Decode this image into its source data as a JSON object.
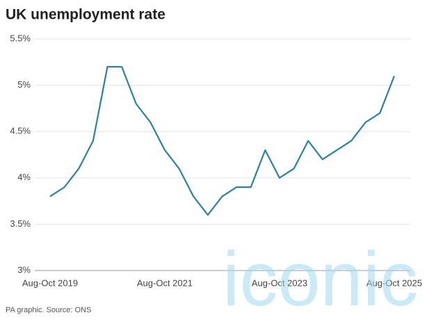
{
  "chart_data": {
    "type": "line",
    "title": "UK unemployment rate",
    "source": "PA graphic. Source: ONS",
    "watermark": "iconic",
    "categories": [
      "Aug-Oct 2019",
      null,
      null,
      null,
      null,
      null,
      null,
      null,
      "Aug-Oct 2021",
      null,
      null,
      null,
      null,
      null,
      null,
      null,
      "Aug-Oct 2023",
      null,
      null,
      null,
      null,
      null,
      null,
      null,
      "Aug-Oct 2025"
    ],
    "series": [
      {
        "name": "Unemployment rate",
        "color": "#2a80a3",
        "values": [
          3.8,
          3.9,
          4.1,
          4.4,
          5.2,
          5.2,
          4.8,
          4.6,
          4.3,
          4.1,
          3.8,
          3.6,
          3.8,
          3.9,
          3.9,
          4.3,
          4.0,
          4.1,
          4.4,
          4.2,
          4.3,
          4.4,
          4.6,
          4.7,
          5.1
        ]
      }
    ],
    "ylim": [
      3,
      5.5
    ],
    "yticks": [
      {
        "value": 3,
        "label": "3%"
      },
      {
        "value": 3.5,
        "label": "3.5%"
      },
      {
        "value": 4,
        "label": "4%"
      },
      {
        "value": 4.5,
        "label": "4.5%"
      },
      {
        "value": 5,
        "label": "5%"
      },
      {
        "value": 5.5,
        "label": "5.5%"
      }
    ],
    "grid": true
  }
}
